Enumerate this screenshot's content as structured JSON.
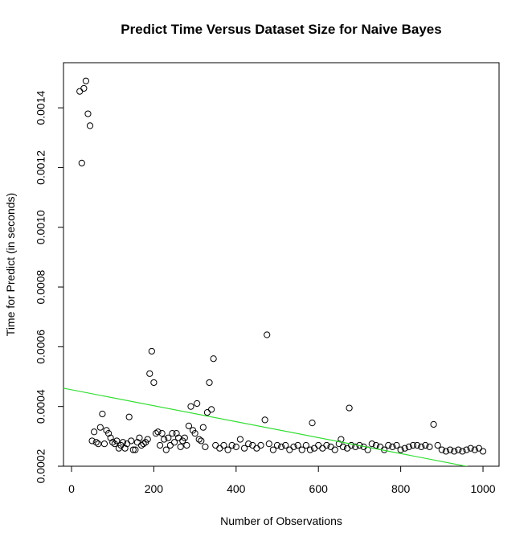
{
  "chart_data": {
    "type": "scatter",
    "title": "Predict Time Versus Dataset Size for Naive Bayes",
    "x_label": "Number of Observations",
    "y_label": "Time for Predict (in seconds)",
    "xlim": [
      -19.5,
      1039
    ],
    "ylim": [
      0.0002,
      0.001551
    ],
    "xticks": [
      0,
      200,
      400,
      600,
      800,
      1000
    ],
    "yticks": [
      0.0002,
      0.0004,
      0.0006,
      0.0008,
      {
        "value": 0.001,
        "label": "0.0010"
      },
      0.0012,
      0.0014
    ],
    "color": "#000000",
    "fit": {
      "intercept": 0.000456,
      "slope": -2.67e-07,
      "color": "#33dd33"
    },
    "x": [
      20,
      25,
      30,
      35,
      40,
      45,
      50,
      55,
      60,
      65,
      70,
      75,
      80,
      85,
      90,
      95,
      100,
      105,
      110,
      115,
      120,
      125,
      130,
      135,
      140,
      145,
      150,
      155,
      160,
      165,
      170,
      175,
      180,
      185,
      190,
      195,
      200,
      205,
      210,
      215,
      220,
      225,
      230,
      235,
      240,
      245,
      250,
      255,
      260,
      265,
      270,
      275,
      280,
      285,
      290,
      295,
      300,
      305,
      310,
      315,
      320,
      325,
      330,
      335,
      340,
      345,
      350,
      360,
      370,
      380,
      390,
      400,
      410,
      420,
      430,
      440,
      450,
      460,
      470,
      475,
      480,
      490,
      500,
      510,
      520,
      530,
      540,
      550,
      560,
      570,
      580,
      585,
      590,
      600,
      610,
      620,
      630,
      640,
      650,
      655,
      660,
      670,
      675,
      680,
      690,
      700,
      710,
      720,
      730,
      740,
      750,
      760,
      770,
      780,
      790,
      800,
      810,
      820,
      830,
      840,
      850,
      860,
      870,
      880,
      890,
      900,
      910,
      920,
      930,
      940,
      950,
      960,
      970,
      980,
      990,
      1000
    ],
    "y": [
      0.001455,
      0.001215,
      0.001465,
      0.00149,
      0.00138,
      0.00134,
      0.000285,
      0.000315,
      0.00028,
      0.000275,
      0.00033,
      0.000375,
      0.000275,
      0.00032,
      0.00031,
      0.000295,
      0.00028,
      0.000275,
      0.000285,
      0.00026,
      0.00027,
      0.00028,
      0.00026,
      0.000275,
      0.000365,
      0.000285,
      0.000255,
      0.000255,
      0.00028,
      0.000295,
      0.00027,
      0.000275,
      0.00028,
      0.00029,
      0.00051,
      0.000585,
      0.00048,
      0.00031,
      0.000315,
      0.00027,
      0.00031,
      0.00029,
      0.000255,
      0.000295,
      0.00027,
      0.00031,
      0.00028,
      0.00031,
      0.000295,
      0.000265,
      0.000285,
      0.000295,
      0.00027,
      0.000335,
      0.0004,
      0.00032,
      0.00031,
      0.00041,
      0.00029,
      0.000285,
      0.00033,
      0.000265,
      0.00038,
      0.00048,
      0.00039,
      0.00056,
      0.00027,
      0.00026,
      0.00027,
      0.000255,
      0.00027,
      0.000265,
      0.00029,
      0.00026,
      0.000275,
      0.00027,
      0.00026,
      0.00027,
      0.000355,
      0.00064,
      0.000275,
      0.000255,
      0.00027,
      0.000265,
      0.00027,
      0.000255,
      0.000265,
      0.00027,
      0.000255,
      0.00027,
      0.000255,
      0.000345,
      0.00026,
      0.00027,
      0.00026,
      0.00027,
      0.000265,
      0.000255,
      0.000275,
      0.00029,
      0.000265,
      0.00026,
      0.000395,
      0.00027,
      0.000265,
      0.00027,
      0.000265,
      0.000255,
      0.000275,
      0.00027,
      0.000265,
      0.000255,
      0.00027,
      0.000265,
      0.00027,
      0.000255,
      0.00026,
      0.000265,
      0.00027,
      0.00027,
      0.000265,
      0.00027,
      0.000265,
      0.00034,
      0.00027,
      0.000255,
      0.00025,
      0.000255,
      0.00025,
      0.000255,
      0.00025,
      0.000255,
      0.00026,
      0.000255,
      0.00026,
      0.00025
    ]
  }
}
